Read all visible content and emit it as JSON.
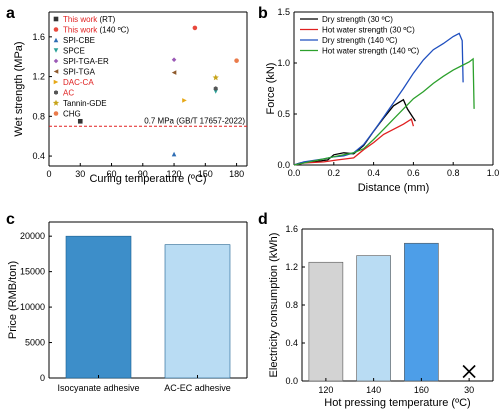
{
  "figure": {
    "panels": [
      "a",
      "b",
      "c",
      "d"
    ]
  },
  "chart_data": [
    {
      "id": "a",
      "type": "scatter",
      "xlabel": "Curing temperature (ºC)",
      "ylabel": "Wet strength (MPa)",
      "xlim": [
        0,
        190
      ],
      "ylim": [
        0.3,
        1.85
      ],
      "xticks": [
        0,
        30,
        60,
        90,
        120,
        150,
        180
      ],
      "yticks": [
        0.4,
        0.8,
        1.2,
        1.6
      ],
      "grid": false,
      "legend": "top-left inside",
      "series": [
        {
          "name": "This work",
          "suffix": " (RT)",
          "name_color": "#e02020",
          "color": "#333333",
          "marker": "square",
          "points": [
            [
              30,
              0.75
            ]
          ]
        },
        {
          "name": "This work",
          "suffix": " (140 ºC)",
          "name_color": "#e02020",
          "color": "#e8483c",
          "marker": "circle",
          "points": [
            [
              140,
              1.69
            ]
          ]
        },
        {
          "name": "SPI-CBE",
          "suffix": "",
          "name_color": "#000000",
          "color": "#2e6db4",
          "marker": "triangle-up",
          "points": [
            [
              120,
              0.42
            ]
          ]
        },
        {
          "name": "SPCE",
          "suffix": "",
          "name_color": "#000000",
          "color": "#2aa198",
          "marker": "triangle-down",
          "points": [
            [
              160,
              1.05
            ]
          ]
        },
        {
          "name": "SPI-TGA-ER",
          "suffix": "",
          "name_color": "#000000",
          "color": "#9b59b6",
          "marker": "diamond",
          "points": [
            [
              120,
              1.37
            ]
          ]
        },
        {
          "name": "SPI-TGA",
          "suffix": "",
          "name_color": "#000000",
          "color": "#8e5a2c",
          "marker": "triangle-left",
          "points": [
            [
              120,
              1.24
            ]
          ]
        },
        {
          "name": "DAC-CA",
          "suffix": "",
          "name_color": "#e02020",
          "color": "#e6a817",
          "marker": "triangle-right",
          "points": [
            [
              130,
              0.96
            ]
          ]
        },
        {
          "name": "AC",
          "suffix": "",
          "name_color": "#e02020",
          "color": "#555555",
          "marker": "hexagon",
          "points": [
            [
              160,
              1.08
            ]
          ]
        },
        {
          "name": "Tannin-GDE",
          "suffix": "",
          "name_color": "#000000",
          "color": "#c7a41a",
          "marker": "star",
          "points": [
            [
              160,
              1.19
            ]
          ]
        },
        {
          "name": "CHG",
          "suffix": "",
          "name_color": "#000000",
          "color": "#ea7b4b",
          "marker": "circle",
          "points": [
            [
              180,
              1.36
            ]
          ]
        }
      ],
      "reference_line": {
        "y": 0.7,
        "label": "0.7 MPa (GB/T 17657-2022)",
        "color": "#e02020"
      }
    },
    {
      "id": "b",
      "type": "line",
      "xlabel": "Distance (mm)",
      "ylabel": "Force (kN)",
      "xlim": [
        0,
        1.0
      ],
      "ylim": [
        0,
        1.5
      ],
      "xticks": [
        0.0,
        0.2,
        0.4,
        0.6,
        0.8,
        1.0
      ],
      "yticks": [
        0.0,
        0.5,
        1.0,
        1.5
      ],
      "legend": "top-left inside",
      "series": [
        {
          "name": "Dry strength (30 ºC)",
          "color": "#000000",
          "points": [
            [
              0,
              0
            ],
            [
              0.03,
              0.02
            ],
            [
              0.1,
              0.03
            ],
            [
              0.17,
              0.05
            ],
            [
              0.2,
              0.1
            ],
            [
              0.25,
              0.12
            ],
            [
              0.3,
              0.11
            ],
            [
              0.35,
              0.19
            ],
            [
              0.4,
              0.33
            ],
            [
              0.45,
              0.46
            ],
            [
              0.5,
              0.58
            ],
            [
              0.55,
              0.64
            ],
            [
              0.57,
              0.55
            ],
            [
              0.6,
              0.46
            ],
            [
              0.61,
              0.43
            ]
          ]
        },
        {
          "name": "Hot water strength (30 ºC)",
          "color": "#e02020",
          "points": [
            [
              0,
              0
            ],
            [
              0.05,
              0.02
            ],
            [
              0.15,
              0.03
            ],
            [
              0.22,
              0.05
            ],
            [
              0.3,
              0.07
            ],
            [
              0.35,
              0.15
            ],
            [
              0.4,
              0.22
            ],
            [
              0.45,
              0.3
            ],
            [
              0.5,
              0.35
            ],
            [
              0.55,
              0.4
            ],
            [
              0.59,
              0.45
            ],
            [
              0.6,
              0.38
            ]
          ]
        },
        {
          "name": "Dry strength (140 ºC)",
          "color": "#1f4fbf",
          "points": [
            [
              0,
              0
            ],
            [
              0.05,
              0.03
            ],
            [
              0.15,
              0.06
            ],
            [
              0.2,
              0.08
            ],
            [
              0.25,
              0.09
            ],
            [
              0.3,
              0.12
            ],
            [
              0.35,
              0.2
            ],
            [
              0.4,
              0.33
            ],
            [
              0.45,
              0.47
            ],
            [
              0.5,
              0.61
            ],
            [
              0.55,
              0.75
            ],
            [
              0.6,
              0.9
            ],
            [
              0.65,
              1.03
            ],
            [
              0.7,
              1.13
            ],
            [
              0.75,
              1.19
            ],
            [
              0.8,
              1.26
            ],
            [
              0.83,
              1.29
            ],
            [
              0.845,
              1.22
            ],
            [
              0.85,
              0.81
            ]
          ]
        },
        {
          "name": "Hot water strength (140 ºC)",
          "color": "#2ca02c",
          "points": [
            [
              0,
              0
            ],
            [
              0.05,
              0.02
            ],
            [
              0.1,
              0.04
            ],
            [
              0.15,
              0.06
            ],
            [
              0.2,
              0.08
            ],
            [
              0.3,
              0.12
            ],
            [
              0.35,
              0.16
            ],
            [
              0.4,
              0.25
            ],
            [
              0.45,
              0.35
            ],
            [
              0.5,
              0.45
            ],
            [
              0.55,
              0.55
            ],
            [
              0.6,
              0.65
            ],
            [
              0.65,
              0.72
            ],
            [
              0.7,
              0.8
            ],
            [
              0.75,
              0.87
            ],
            [
              0.8,
              0.93
            ],
            [
              0.85,
              0.98
            ],
            [
              0.88,
              1.01
            ],
            [
              0.9,
              1.04
            ],
            [
              0.905,
              0.55
            ]
          ]
        }
      ]
    },
    {
      "id": "c",
      "type": "bar",
      "xlabel": "",
      "ylabel": "Price (RMB/ton)",
      "ylim": [
        0,
        22000
      ],
      "yticks": [
        0,
        5000,
        10000,
        15000,
        20000
      ],
      "categories": [
        "Isocyanate adhesive",
        "AC-EC adhesive"
      ],
      "values": [
        20000,
        18800
      ],
      "colors": [
        "#3d8ec9",
        "#b9dcf3"
      ]
    },
    {
      "id": "d",
      "type": "bar",
      "xlabel": "Hot pressing temperature (ºC)",
      "ylabel": "Electricity consumption (kWh)",
      "ylim": [
        0,
        1.6
      ],
      "yticks": [
        0.0,
        0.4,
        0.8,
        1.2,
        1.6
      ],
      "categories": [
        "120",
        "140",
        "160",
        "30"
      ],
      "values": [
        1.25,
        1.32,
        1.45,
        0
      ],
      "colors": [
        "#d3d3d3",
        "#b9dcf3",
        "#4d9ee8",
        "#000000"
      ],
      "markers": [
        "bar",
        "bar",
        "bar",
        "cross"
      ]
    }
  ]
}
